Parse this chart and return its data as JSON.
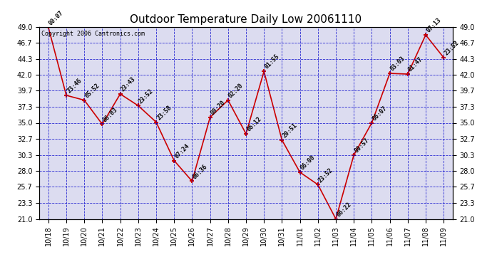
{
  "title": "Outdoor Temperature Daily Low 20061110",
  "copyright": "Copyright 2006 Cantronics.com",
  "dates": [
    "10/18",
    "10/19",
    "10/20",
    "10/21",
    "10/22",
    "10/23",
    "10/24",
    "10/25",
    "10/26",
    "10/27",
    "10/28",
    "10/29",
    "10/30",
    "10/31",
    "11/01",
    "11/02",
    "11/03",
    "11/04",
    "11/05",
    "11/06",
    "11/07",
    "11/08",
    "11/09"
  ],
  "values": [
    48.9,
    39.0,
    38.3,
    34.8,
    39.2,
    37.5,
    35.1,
    29.5,
    26.5,
    35.8,
    38.3,
    33.4,
    42.5,
    32.5,
    27.8,
    26.0,
    21.0,
    30.3,
    35.0,
    42.2,
    42.1,
    47.8,
    44.5
  ],
  "annotations": [
    "00:07",
    "23:46",
    "05:52",
    "06:03",
    "23:43",
    "23:52",
    "23:58",
    "07:24",
    "06:36",
    "00:20",
    "02:20",
    "06:12",
    "01:55",
    "20:51",
    "06:00",
    "23:52",
    "06:22",
    "00:57",
    "06:07",
    "03:03",
    "01:47",
    "07:13",
    "23:52"
  ],
  "ylim": [
    21.0,
    49.0
  ],
  "yticks": [
    21.0,
    23.3,
    25.7,
    28.0,
    30.3,
    32.7,
    35.0,
    37.3,
    39.7,
    42.0,
    44.3,
    46.7,
    49.0
  ],
  "line_color": "#cc0000",
  "marker_color": "#cc0000",
  "grid_color": "#0000cc",
  "bg_color": "#dcdcf0",
  "title_fontsize": 11,
  "annot_fontsize": 6,
  "tick_fontsize": 7,
  "copyright_fontsize": 6
}
